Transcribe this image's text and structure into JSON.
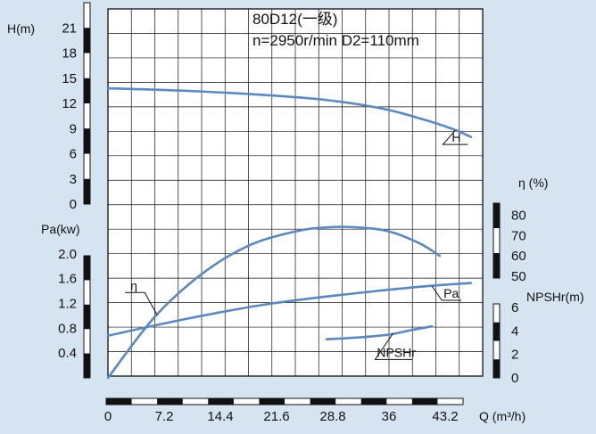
{
  "chart_data": {
    "type": "line",
    "title": "80D12(一级)",
    "subtitle": "n=2950r/min  D2=110mm",
    "colors": {
      "curve": "#5b88bf",
      "grid": "#111111",
      "plot_bg": "#ffffff",
      "page_bg": "#d6e4f2"
    },
    "x_axis": {
      "label": "Q (m³/h)",
      "range": [
        0,
        48
      ],
      "ticks": [
        "0",
        "7.2",
        "14.4",
        "21.6",
        "28.8",
        "36",
        "43.2"
      ],
      "tick_values": [
        0,
        7.2,
        14.4,
        21.6,
        28.8,
        36,
        43.2
      ]
    },
    "axes": {
      "H": {
        "label": "H(m)",
        "range": [
          0,
          24
        ],
        "ticks": [
          "0",
          "3",
          "6",
          "9",
          "12",
          "15",
          "18",
          "21"
        ],
        "tick_values": [
          0,
          3,
          6,
          9,
          12,
          15,
          18,
          21
        ]
      },
      "Pa": {
        "label": "Pa(kw)",
        "range": [
          0,
          2.4
        ],
        "ticks": [
          "0.4",
          "0.8",
          "1.2",
          "1.6",
          "2.0"
        ],
        "tick_values": [
          0.4,
          0.8,
          1.2,
          1.6,
          2.0
        ]
      },
      "eta": {
        "label": "η (%)",
        "range": [
          0,
          110
        ],
        "ticks": [
          "50",
          "60",
          "70",
          "80"
        ],
        "tick_values": [
          50,
          60,
          70,
          80
        ]
      },
      "NPSHr": {
        "label": "NPSHr(m)",
        "range": [
          0,
          15
        ],
        "ticks": [
          "0",
          "2",
          "4",
          "6"
        ],
        "tick_values": [
          0,
          2,
          4,
          6
        ]
      }
    },
    "series": [
      {
        "name": "H",
        "axis": "H",
        "x": [
          0,
          10,
          20,
          28,
          35,
          40,
          44,
          46.5
        ],
        "y": [
          13.8,
          13.5,
          13,
          12.4,
          11.4,
          10.2,
          9.0,
          8.0
        ]
      },
      {
        "name": "η",
        "axis": "eta",
        "x": [
          0,
          6,
          12,
          18,
          24,
          28,
          32,
          36,
          40,
          42.5
        ],
        "y": [
          0,
          30,
          51,
          65,
          72,
          74,
          74,
          72,
          66,
          60
        ]
      },
      {
        "name": "Pa",
        "axis": "Pa",
        "x": [
          0,
          10,
          20,
          30,
          40,
          46.5
        ],
        "y": [
          0.68,
          0.95,
          1.18,
          1.34,
          1.47,
          1.53
        ]
      },
      {
        "name": "NPSHr",
        "axis": "NPSHr",
        "x": [
          28,
          32,
          36,
          39,
          41.5
        ],
        "y": [
          3.3,
          3.45,
          3.7,
          4.1,
          4.4
        ]
      }
    ]
  }
}
